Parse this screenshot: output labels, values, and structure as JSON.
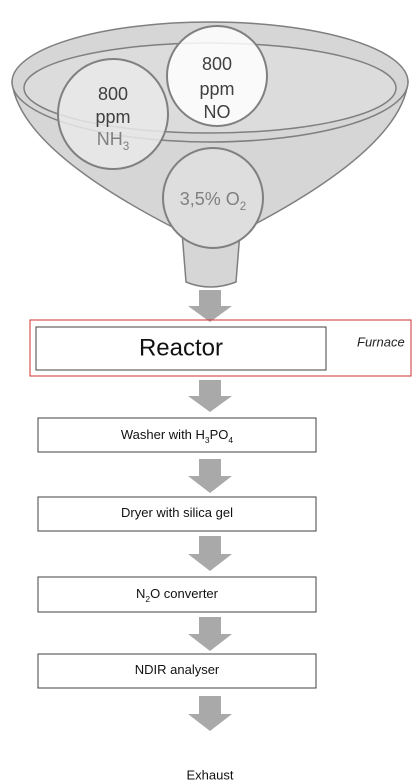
{
  "funnel": {
    "gases": [
      {
        "lines": [
          [
            "800"
          ],
          [
            "ppm"
          ],
          [
            "NH",
            "3"
          ]
        ]
      },
      {
        "lines": [
          [
            "800"
          ],
          [
            "ppm"
          ],
          [
            "NO"
          ]
        ]
      },
      {
        "lines": [
          [
            "3,5% O",
            "2"
          ]
        ]
      }
    ]
  },
  "reactor": {
    "label": "Reactor",
    "furnace": "Furnace"
  },
  "steps": [
    [
      "Washer with H",
      "3",
      "PO",
      "4"
    ],
    [
      "Dryer with silica gel"
    ],
    [
      "N",
      "2",
      "O converter"
    ],
    [
      "NDIR analyser"
    ]
  ],
  "exhaust": "Exhaust"
}
